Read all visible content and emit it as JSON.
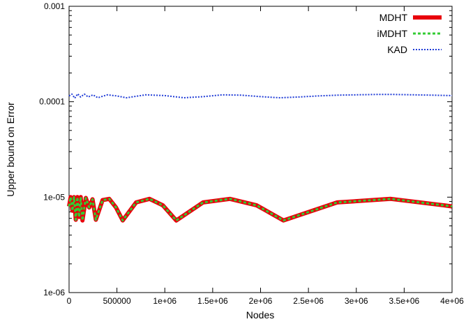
{
  "chart_data": {
    "type": "line",
    "title": "",
    "xlabel": "Nodes",
    "ylabel": "Upper bound on Error",
    "xlim": [
      0,
      4000000
    ],
    "ylim": [
      1e-06,
      0.001
    ],
    "yscale": "log",
    "grid": false,
    "legend": "top-right",
    "x_ticks": [
      0,
      500000,
      1000000,
      1500000,
      2000000,
      2500000,
      3000000,
      3500000,
      4000000
    ],
    "x_tick_labels": [
      "0",
      "500000",
      "1e+06",
      "1.5e+06",
      "2e+06",
      "2.5e+06",
      "3e+06",
      "3.5e+06",
      "4e+06"
    ],
    "y_ticks": [
      1e-06,
      1e-05,
      0.0001,
      0.001
    ],
    "y_tick_labels": [
      "1e-06",
      "1e-05",
      "0.0001",
      "0.001"
    ],
    "series": [
      {
        "name": "MDHT",
        "color": "#e8000b",
        "style": "solid-thick",
        "x": [
          0,
          17000,
          35000,
          52000,
          70000,
          87000,
          105000,
          122000,
          140000,
          175000,
          210000,
          245000,
          280000,
          350000,
          420000,
          490000,
          560000,
          700000,
          840000,
          980000,
          1120000,
          1400000,
          1680000,
          1960000,
          2240000,
          2800000,
          3360000,
          3920000,
          4000000
        ],
        "values": [
          8e-06,
          1e-05,
          7.2e-06,
          1e-05,
          5.8e-06,
          1e-05,
          6.2e-06,
          1e-05,
          5.7e-06,
          9.8e-06,
          7.8e-06,
          9.5e-06,
          5.8e-06,
          9.3e-06,
          9.6e-06,
          7.8e-06,
          5.7e-06,
          8.8e-06,
          9.6e-06,
          8.2e-06,
          5.7e-06,
          8.8e-06,
          9.6e-06,
          8.2e-06,
          5.7e-06,
          8.8e-06,
          9.6e-06,
          8.2e-06,
          8e-06
        ]
      },
      {
        "name": "iMDHT",
        "color": "#33cc33",
        "style": "dashed",
        "x": [
          0,
          17000,
          35000,
          52000,
          70000,
          87000,
          105000,
          122000,
          140000,
          175000,
          210000,
          245000,
          280000,
          350000,
          420000,
          490000,
          560000,
          700000,
          840000,
          980000,
          1120000,
          1400000,
          1680000,
          1960000,
          2240000,
          2800000,
          3360000,
          3920000,
          4000000
        ],
        "values": [
          8e-06,
          1e-05,
          7.2e-06,
          1e-05,
          5.8e-06,
          1e-05,
          6.2e-06,
          1e-05,
          5.7e-06,
          9.8e-06,
          7.8e-06,
          9.5e-06,
          5.8e-06,
          9.3e-06,
          9.6e-06,
          7.8e-06,
          5.7e-06,
          8.8e-06,
          9.6e-06,
          8.2e-06,
          5.7e-06,
          8.8e-06,
          9.6e-06,
          8.2e-06,
          5.7e-06,
          8.8e-06,
          9.6e-06,
          8.2e-06,
          8e-06
        ]
      },
      {
        "name": "KAD",
        "color": "#1f3bd6",
        "style": "dotted",
        "x": [
          0,
          30000,
          60000,
          90000,
          120000,
          160000,
          200000,
          250000,
          300000,
          400000,
          500000,
          600000,
          800000,
          1000000,
          1200000,
          1400000,
          1600000,
          1800000,
          2000000,
          2200000,
          2400000,
          2600000,
          2800000,
          3000000,
          3200000,
          3400000,
          3600000,
          3800000,
          4000000
        ],
        "values": [
          0.000115,
          0.00012,
          0.000109,
          0.000121,
          0.000112,
          0.00012,
          0.000112,
          0.000118,
          0.00011,
          0.000118,
          0.000115,
          0.00011,
          0.000118,
          0.000116,
          0.00011,
          0.000113,
          0.000118,
          0.000117,
          0.000113,
          0.00011,
          0.000112,
          0.000115,
          0.000117,
          0.000118,
          0.000119,
          0.000119,
          0.000118,
          0.000117,
          0.000116
        ]
      }
    ]
  }
}
